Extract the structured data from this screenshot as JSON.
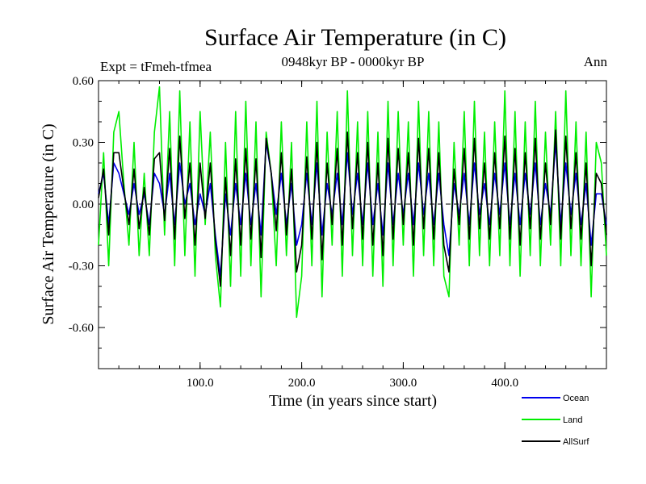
{
  "chart_data": {
    "type": "line",
    "title": "Surface Air Temperature (in C)",
    "subtitle": "0948kyr BP - 0000kyr BP",
    "left_label": "Expt = tFmeh-tfmea",
    "right_label": "Ann",
    "xlabel": "Time (in years since start)",
    "ylabel": "Surface Air Temperature (in C)",
    "xlim": [
      0,
      500
    ],
    "ylim": [
      -0.8,
      0.6
    ],
    "xticks": [
      100,
      200,
      300,
      400
    ],
    "xtick_labels": [
      "100.0",
      "200.0",
      "300.0",
      "400.0"
    ],
    "yticks": [
      0.6,
      0.3,
      0.0,
      -0.3,
      -0.6
    ],
    "ytick_labels": [
      "0.60",
      "0.30",
      "0.00",
      "-0.30",
      "-0.60"
    ],
    "zero_line": "dashed",
    "legend_position": "bottom-right",
    "series": [
      {
        "name": "Land",
        "color": "#00ee00",
        "x": [
          0,
          5,
          10,
          15,
          20,
          25,
          30,
          35,
          40,
          45,
          50,
          55,
          60,
          65,
          70,
          75,
          80,
          85,
          90,
          95,
          100,
          105,
          110,
          115,
          120,
          125,
          130,
          135,
          140,
          145,
          150,
          155,
          160,
          165,
          170,
          175,
          180,
          185,
          190,
          195,
          200,
          205,
          210,
          215,
          220,
          225,
          230,
          235,
          240,
          245,
          250,
          255,
          260,
          265,
          270,
          275,
          280,
          285,
          290,
          295,
          300,
          305,
          310,
          315,
          320,
          325,
          330,
          335,
          340,
          345,
          350,
          355,
          360,
          365,
          370,
          375,
          380,
          385,
          390,
          395,
          400,
          405,
          410,
          415,
          420,
          425,
          430,
          435,
          440,
          445,
          450,
          455,
          460,
          465,
          470,
          475,
          480,
          485,
          490,
          495,
          500
        ],
        "values": [
          -0.2,
          0.25,
          -0.3,
          0.35,
          0.45,
          0.1,
          -0.2,
          0.3,
          -0.25,
          0.15,
          -0.25,
          0.35,
          0.57,
          -0.15,
          0.45,
          -0.3,
          0.55,
          -0.25,
          0.4,
          -0.35,
          0.45,
          -0.1,
          0.35,
          -0.25,
          -0.5,
          0.3,
          -0.4,
          0.45,
          -0.35,
          0.5,
          -0.3,
          0.4,
          -0.45,
          0.35,
          0.15,
          -0.3,
          0.4,
          -0.25,
          0.3,
          -0.55,
          -0.35,
          0.4,
          -0.3,
          0.5,
          -0.45,
          0.35,
          -0.2,
          0.45,
          -0.35,
          0.55,
          -0.25,
          0.4,
          -0.3,
          0.45,
          -0.35,
          0.35,
          -0.4,
          0.5,
          -0.3,
          0.45,
          -0.2,
          0.4,
          -0.35,
          0.5,
          -0.25,
          0.45,
          -0.3,
          0.4,
          -0.35,
          -0.45,
          0.3,
          -0.2,
          0.45,
          -0.3,
          0.5,
          -0.25,
          0.35,
          -0.3,
          0.4,
          -0.25,
          0.55,
          -0.3,
          0.45,
          -0.35,
          0.4,
          -0.25,
          0.5,
          -0.3,
          0.35,
          -0.2,
          0.45,
          -0.3,
          0.55,
          -0.25,
          0.4,
          -0.3,
          0.35,
          -0.45,
          0.3,
          0.2,
          -0.25
        ]
      },
      {
        "name": "Ocean",
        "color": "#0000ee",
        "x": [
          0,
          5,
          10,
          15,
          20,
          25,
          30,
          35,
          40,
          45,
          50,
          55,
          60,
          65,
          70,
          75,
          80,
          85,
          90,
          95,
          100,
          105,
          110,
          115,
          120,
          125,
          130,
          135,
          140,
          145,
          150,
          155,
          160,
          165,
          170,
          175,
          180,
          185,
          190,
          195,
          200,
          205,
          210,
          215,
          220,
          225,
          230,
          235,
          240,
          245,
          250,
          255,
          260,
          265,
          270,
          275,
          280,
          285,
          290,
          295,
          300,
          305,
          310,
          315,
          320,
          325,
          330,
          335,
          340,
          345,
          350,
          355,
          360,
          365,
          370,
          375,
          380,
          385,
          390,
          395,
          400,
          405,
          410,
          415,
          420,
          425,
          430,
          435,
          440,
          445,
          450,
          455,
          460,
          465,
          470,
          475,
          480,
          485,
          490,
          495,
          500
        ],
        "values": [
          0.05,
          0.15,
          -0.1,
          0.2,
          0.15,
          0.05,
          -0.05,
          0.1,
          -0.05,
          0.05,
          -0.1,
          0.15,
          0.1,
          -0.05,
          0.15,
          -0.1,
          0.2,
          0,
          0.1,
          -0.1,
          0.05,
          -0.05,
          0.1,
          -0.15,
          -0.35,
          0.05,
          -0.15,
          0.1,
          -0.1,
          0.15,
          -0.1,
          0.1,
          -0.15,
          0.3,
          0.15,
          -0.05,
          0.15,
          -0.1,
          0.1,
          -0.2,
          -0.1,
          0.15,
          -0.1,
          0.2,
          -0.15,
          0.1,
          -0.05,
          0.15,
          -0.1,
          0.25,
          -0.05,
          0.15,
          -0.1,
          0.2,
          -0.1,
          0.1,
          -0.15,
          0.2,
          -0.1,
          0.15,
          -0.05,
          0.15,
          -0.1,
          0.2,
          -0.05,
          0.15,
          -0.1,
          0.15,
          -0.1,
          -0.25,
          0.1,
          -0.05,
          0.15,
          -0.1,
          0.2,
          -0.05,
          0.1,
          -0.1,
          0.15,
          -0.05,
          0.2,
          -0.1,
          0.15,
          -0.1,
          0.15,
          -0.05,
          0.2,
          -0.1,
          0.1,
          -0.05,
          0.3,
          -0.1,
          0.2,
          -0.05,
          0.15,
          -0.1,
          0.1,
          -0.2,
          0.05,
          0.05,
          -0.1
        ]
      },
      {
        "name": "AllSurf",
        "color": "#000000",
        "x": [
          0,
          5,
          10,
          15,
          20,
          25,
          30,
          35,
          40,
          45,
          50,
          55,
          60,
          65,
          70,
          75,
          80,
          85,
          90,
          95,
          100,
          105,
          110,
          115,
          120,
          125,
          130,
          135,
          140,
          145,
          150,
          155,
          160,
          165,
          170,
          175,
          180,
          185,
          190,
          195,
          200,
          205,
          210,
          215,
          220,
          225,
          230,
          235,
          240,
          245,
          250,
          255,
          260,
          265,
          270,
          275,
          280,
          285,
          290,
          295,
          300,
          305,
          310,
          315,
          320,
          325,
          330,
          335,
          340,
          345,
          350,
          355,
          360,
          365,
          370,
          375,
          380,
          385,
          390,
          395,
          400,
          405,
          410,
          415,
          420,
          425,
          430,
          435,
          440,
          445,
          450,
          455,
          460,
          465,
          470,
          475,
          480,
          485,
          490,
          495,
          500
        ],
        "values": [
          0.03,
          0.17,
          -0.15,
          0.25,
          0.25,
          0.07,
          -0.1,
          0.17,
          -0.12,
          0.08,
          -0.15,
          0.22,
          0.25,
          -0.08,
          0.27,
          -0.17,
          0.33,
          -0.07,
          0.2,
          -0.2,
          0.2,
          -0.07,
          0.2,
          -0.18,
          -0.4,
          0.13,
          -0.25,
          0.22,
          -0.2,
          0.27,
          -0.17,
          0.22,
          -0.26,
          0.32,
          0.15,
          -0.13,
          0.25,
          -0.15,
          0.17,
          -0.33,
          -0.2,
          0.23,
          -0.17,
          0.3,
          -0.27,
          0.2,
          -0.1,
          0.27,
          -0.2,
          0.35,
          -0.12,
          0.25,
          -0.17,
          0.3,
          -0.2,
          0.2,
          -0.25,
          0.32,
          -0.17,
          0.27,
          -0.1,
          0.25,
          -0.2,
          0.32,
          -0.12,
          0.27,
          -0.17,
          0.25,
          -0.2,
          -0.33,
          0.17,
          -0.1,
          0.27,
          -0.17,
          0.32,
          -0.12,
          0.2,
          -0.17,
          0.25,
          -0.12,
          0.33,
          -0.17,
          0.27,
          -0.2,
          0.25,
          -0.12,
          0.32,
          -0.17,
          0.2,
          -0.1,
          0.36,
          -0.17,
          0.33,
          -0.12,
          0.25,
          -0.17,
          0.2,
          -0.3,
          0.15,
          0.1,
          -0.15
        ]
      }
    ]
  }
}
